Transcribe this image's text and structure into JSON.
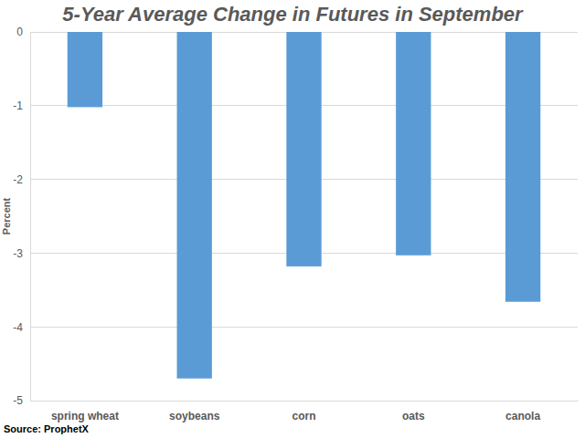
{
  "chart_data": {
    "type": "bar",
    "title": "5-Year Average Change in Futures in September",
    "y_label": "Percent",
    "source": "Source: ProphetX",
    "categories": [
      "spring wheat",
      "soybeans",
      "corn",
      "oats",
      "canola"
    ],
    "values": [
      -1.02,
      -4.7,
      -3.18,
      -3.03,
      -3.66
    ],
    "color": "#5b9bd5",
    "ylim": [
      -5,
      0
    ],
    "yticks": [
      0,
      -1,
      -2,
      -3,
      -4,
      -5
    ],
    "grid": true
  }
}
